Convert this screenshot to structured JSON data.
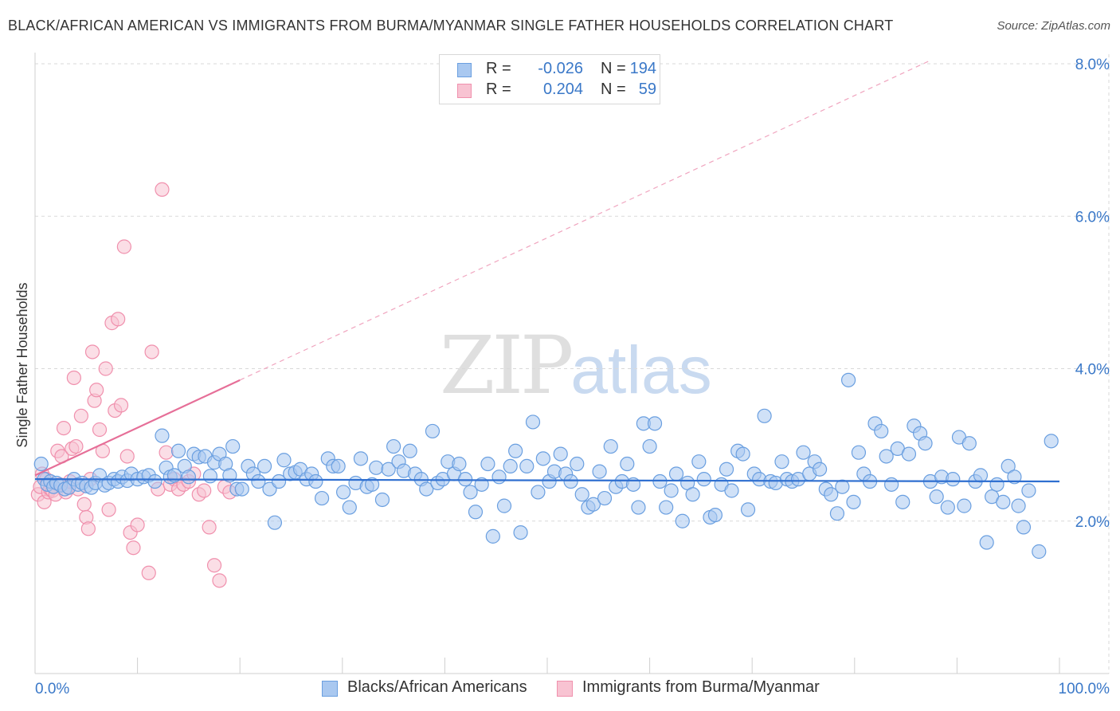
{
  "title": "BLACK/AFRICAN AMERICAN VS IMMIGRANTS FROM BURMA/MYANMAR SINGLE FATHER HOUSEHOLDS CORRELATION CHART",
  "source": "Source: ZipAtlas.com",
  "watermark": {
    "zip": "ZIP",
    "atlas": "atlas"
  },
  "legend": {
    "rows": [
      {
        "r_label": "R =",
        "r_value": "-0.026",
        "n_label": "N =",
        "n_value": "194",
        "color": "#a9c8f0",
        "border": "#6a9fe0"
      },
      {
        "r_label": "R =",
        "r_value": "0.204",
        "n_label": "N =",
        "n_value": "59",
        "color": "#f8c3d2",
        "border": "#f090ad"
      }
    ]
  },
  "bottom_legend": [
    {
      "label": "Blacks/African Americans",
      "color": "#a9c8f0",
      "border": "#6a9fe0"
    },
    {
      "label": "Immigrants from Burma/Myanmar",
      "color": "#f8c3d2",
      "border": "#f090ad"
    }
  ],
  "chart_data": {
    "type": "scatter",
    "title": "BLACK/AFRICAN AMERICAN VS IMMIGRANTS FROM BURMA/MYANMAR SINGLE FATHER HOUSEHOLDS CORRELATION CHART",
    "xlabel": "",
    "ylabel": "Single Father Households",
    "xlim": [
      0,
      100
    ],
    "ylim": [
      0,
      8.0
    ],
    "x_tick_labels": [
      "0.0%",
      "100.0%"
    ],
    "y_ticks": [
      2.0,
      4.0,
      6.0,
      8.0
    ],
    "y_tick_labels": [
      "2.0%",
      "4.0%",
      "6.0%",
      "8.0%"
    ],
    "grid": true,
    "series": [
      {
        "name": "Blacks/African Americans",
        "color": "#a9c8f0",
        "stroke": "#6a9fe0",
        "trend": {
          "x0": 0,
          "y0": 2.55,
          "x1": 100,
          "y1": 2.52,
          "color": "#2f6fd0"
        },
        "points": [
          [
            0.6,
            2.75
          ],
          [
            0.9,
            2.55
          ],
          [
            1.2,
            2.48
          ],
          [
            1.5,
            2.52
          ],
          [
            1.8,
            2.45
          ],
          [
            2.1,
            2.5
          ],
          [
            2.5,
            2.47
          ],
          [
            2.9,
            2.42
          ],
          [
            3.3,
            2.44
          ],
          [
            3.8,
            2.55
          ],
          [
            4.2,
            2.48
          ],
          [
            4.6,
            2.5
          ],
          [
            5.0,
            2.46
          ],
          [
            5.5,
            2.44
          ],
          [
            5.9,
            2.5
          ],
          [
            6.3,
            2.6
          ],
          [
            6.8,
            2.47
          ],
          [
            7.2,
            2.5
          ],
          [
            7.7,
            2.55
          ],
          [
            8.1,
            2.52
          ],
          [
            8.5,
            2.58
          ],
          [
            9.0,
            2.53
          ],
          [
            9.4,
            2.62
          ],
          [
            10.0,
            2.55
          ],
          [
            10.6,
            2.58
          ],
          [
            11.1,
            2.6
          ],
          [
            11.7,
            2.52
          ],
          [
            12.4,
            3.12
          ],
          [
            12.8,
            2.7
          ],
          [
            13.2,
            2.58
          ],
          [
            13.6,
            2.6
          ],
          [
            14.0,
            2.92
          ],
          [
            14.6,
            2.72
          ],
          [
            15.0,
            2.58
          ],
          [
            15.5,
            2.88
          ],
          [
            16.0,
            2.84
          ],
          [
            16.6,
            2.85
          ],
          [
            17.1,
            2.59
          ],
          [
            17.5,
            2.77
          ],
          [
            18.0,
            2.88
          ],
          [
            18.6,
            2.75
          ],
          [
            19.0,
            2.6
          ],
          [
            19.3,
            2.98
          ],
          [
            19.7,
            2.42
          ],
          [
            20.2,
            2.42
          ],
          [
            20.8,
            2.72
          ],
          [
            21.3,
            2.62
          ],
          [
            21.8,
            2.52
          ],
          [
            22.4,
            2.72
          ],
          [
            22.9,
            2.42
          ],
          [
            23.4,
            1.98
          ],
          [
            23.8,
            2.52
          ],
          [
            24.3,
            2.8
          ],
          [
            24.9,
            2.62
          ],
          [
            25.4,
            2.64
          ],
          [
            25.9,
            2.68
          ],
          [
            26.5,
            2.55
          ],
          [
            27.0,
            2.62
          ],
          [
            27.4,
            2.52
          ],
          [
            28.0,
            2.3
          ],
          [
            28.6,
            2.82
          ],
          [
            29.1,
            2.72
          ],
          [
            29.6,
            2.72
          ],
          [
            30.1,
            2.38
          ],
          [
            30.7,
            2.18
          ],
          [
            31.3,
            2.5
          ],
          [
            31.8,
            2.82
          ],
          [
            32.4,
            2.45
          ],
          [
            32.9,
            2.48
          ],
          [
            33.3,
            2.7
          ],
          [
            33.9,
            2.28
          ],
          [
            34.5,
            2.68
          ],
          [
            35.0,
            2.98
          ],
          [
            35.5,
            2.78
          ],
          [
            36.0,
            2.66
          ],
          [
            36.6,
            2.92
          ],
          [
            37.1,
            2.62
          ],
          [
            37.7,
            2.55
          ],
          [
            38.2,
            2.42
          ],
          [
            38.8,
            3.18
          ],
          [
            39.3,
            2.5
          ],
          [
            39.8,
            2.55
          ],
          [
            40.3,
            2.78
          ],
          [
            40.9,
            2.62
          ],
          [
            41.4,
            2.75
          ],
          [
            42.0,
            2.55
          ],
          [
            42.5,
            2.38
          ],
          [
            43.0,
            2.12
          ],
          [
            43.6,
            2.48
          ],
          [
            44.2,
            2.75
          ],
          [
            44.7,
            1.8
          ],
          [
            45.3,
            2.58
          ],
          [
            45.8,
            2.2
          ],
          [
            46.4,
            2.72
          ],
          [
            46.9,
            2.92
          ],
          [
            47.4,
            1.85
          ],
          [
            48.0,
            2.72
          ],
          [
            48.6,
            3.3
          ],
          [
            49.1,
            2.38
          ],
          [
            49.6,
            2.82
          ],
          [
            50.2,
            2.52
          ],
          [
            50.7,
            2.65
          ],
          [
            51.3,
            2.88
          ],
          [
            51.8,
            2.62
          ],
          [
            52.3,
            2.52
          ],
          [
            52.9,
            2.75
          ],
          [
            53.4,
            2.35
          ],
          [
            54.0,
            2.18
          ],
          [
            54.5,
            2.22
          ],
          [
            55.1,
            2.65
          ],
          [
            55.6,
            2.3
          ],
          [
            56.2,
            2.98
          ],
          [
            56.7,
            2.45
          ],
          [
            57.3,
            2.52
          ],
          [
            57.8,
            2.75
          ],
          [
            58.4,
            2.48
          ],
          [
            58.9,
            2.18
          ],
          [
            59.4,
            3.28
          ],
          [
            60.0,
            2.98
          ],
          [
            60.5,
            3.28
          ],
          [
            61.0,
            2.52
          ],
          [
            61.6,
            2.18
          ],
          [
            62.1,
            2.4
          ],
          [
            62.6,
            2.62
          ],
          [
            63.2,
            2.0
          ],
          [
            63.7,
            2.5
          ],
          [
            64.2,
            2.35
          ],
          [
            64.8,
            2.78
          ],
          [
            65.3,
            2.55
          ],
          [
            65.9,
            2.05
          ],
          [
            66.4,
            2.08
          ],
          [
            67.0,
            2.48
          ],
          [
            67.5,
            2.68
          ],
          [
            68.0,
            2.4
          ],
          [
            68.6,
            2.92
          ],
          [
            69.1,
            2.88
          ],
          [
            69.6,
            2.15
          ],
          [
            70.2,
            2.62
          ],
          [
            70.7,
            2.55
          ],
          [
            71.2,
            3.38
          ],
          [
            71.8,
            2.52
          ],
          [
            72.3,
            2.5
          ],
          [
            72.9,
            2.78
          ],
          [
            73.4,
            2.55
          ],
          [
            73.9,
            2.52
          ],
          [
            74.5,
            2.55
          ],
          [
            75.0,
            2.9
          ],
          [
            75.6,
            2.62
          ],
          [
            76.1,
            2.78
          ],
          [
            76.6,
            2.68
          ],
          [
            77.2,
            2.42
          ],
          [
            77.7,
            2.35
          ],
          [
            78.3,
            2.1
          ],
          [
            78.8,
            2.45
          ],
          [
            79.4,
            3.85
          ],
          [
            79.9,
            2.25
          ],
          [
            80.4,
            2.9
          ],
          [
            80.9,
            2.62
          ],
          [
            81.5,
            2.52
          ],
          [
            82.0,
            3.28
          ],
          [
            82.6,
            3.18
          ],
          [
            83.1,
            2.85
          ],
          [
            83.6,
            2.48
          ],
          [
            84.2,
            2.95
          ],
          [
            84.7,
            2.25
          ],
          [
            85.3,
            2.88
          ],
          [
            85.8,
            3.25
          ],
          [
            86.4,
            3.15
          ],
          [
            86.9,
            3.02
          ],
          [
            87.4,
            2.52
          ],
          [
            88.0,
            2.32
          ],
          [
            88.5,
            2.58
          ],
          [
            89.1,
            2.18
          ],
          [
            89.6,
            2.55
          ],
          [
            90.2,
            3.1
          ],
          [
            90.7,
            2.2
          ],
          [
            91.2,
            3.02
          ],
          [
            91.8,
            2.52
          ],
          [
            92.3,
            2.6
          ],
          [
            92.9,
            1.72
          ],
          [
            93.4,
            2.32
          ],
          [
            93.9,
            2.48
          ],
          [
            94.5,
            2.25
          ],
          [
            95.0,
            2.72
          ],
          [
            95.6,
            2.58
          ],
          [
            96.0,
            2.2
          ],
          [
            96.5,
            1.92
          ],
          [
            97.0,
            2.4
          ],
          [
            99.2,
            3.05
          ],
          [
            98.0,
            1.6
          ]
        ]
      },
      {
        "name": "Immigrants from Burma/Myanmar",
        "color": "#f8c3d2",
        "stroke": "#f090ad",
        "trend": {
          "x0": 0,
          "y0": 2.6,
          "x1": 20,
          "y1": 3.85,
          "color": "#e66f98"
        },
        "trend_dashed": {
          "x0": 20,
          "y0": 3.85,
          "x1": 87.5,
          "y1": 8.05,
          "color": "#f0a5bf"
        },
        "points": [
          [
            0.3,
            2.35
          ],
          [
            0.5,
            2.45
          ],
          [
            0.7,
            2.62
          ],
          [
            0.9,
            2.25
          ],
          [
            1.1,
            2.55
          ],
          [
            1.3,
            2.38
          ],
          [
            1.5,
            2.42
          ],
          [
            1.7,
            2.4
          ],
          [
            2.0,
            2.35
          ],
          [
            2.2,
            2.92
          ],
          [
            2.4,
            2.48
          ],
          [
            2.6,
            2.85
          ],
          [
            2.8,
            3.22
          ],
          [
            3.0,
            2.38
          ],
          [
            3.2,
            2.45
          ],
          [
            3.4,
            2.52
          ],
          [
            3.6,
            2.95
          ],
          [
            3.8,
            3.88
          ],
          [
            4.0,
            2.98
          ],
          [
            4.2,
            2.42
          ],
          [
            4.5,
            3.38
          ],
          [
            4.8,
            2.22
          ],
          [
            5.0,
            2.05
          ],
          [
            5.2,
            1.9
          ],
          [
            5.4,
            2.55
          ],
          [
            5.6,
            4.22
          ],
          [
            5.8,
            3.58
          ],
          [
            6.0,
            3.72
          ],
          [
            6.3,
            3.2
          ],
          [
            6.6,
            2.92
          ],
          [
            6.9,
            4.0
          ],
          [
            7.2,
            2.15
          ],
          [
            7.5,
            4.6
          ],
          [
            7.8,
            3.45
          ],
          [
            8.1,
            4.65
          ],
          [
            8.4,
            3.52
          ],
          [
            8.7,
            5.6
          ],
          [
            9.0,
            2.85
          ],
          [
            9.3,
            1.85
          ],
          [
            9.6,
            1.65
          ],
          [
            10.0,
            1.95
          ],
          [
            11.1,
            1.32
          ],
          [
            11.4,
            4.22
          ],
          [
            12.0,
            2.42
          ],
          [
            12.4,
            6.35
          ],
          [
            12.8,
            2.9
          ],
          [
            13.2,
            2.48
          ],
          [
            13.6,
            2.55
          ],
          [
            14.0,
            2.42
          ],
          [
            14.5,
            2.48
          ],
          [
            15.0,
            2.52
          ],
          [
            15.5,
            2.62
          ],
          [
            16.0,
            2.35
          ],
          [
            16.5,
            2.4
          ],
          [
            17.0,
            1.92
          ],
          [
            17.5,
            1.42
          ],
          [
            18.0,
            1.22
          ],
          [
            18.5,
            2.45
          ],
          [
            19.0,
            2.38
          ]
        ]
      }
    ]
  }
}
